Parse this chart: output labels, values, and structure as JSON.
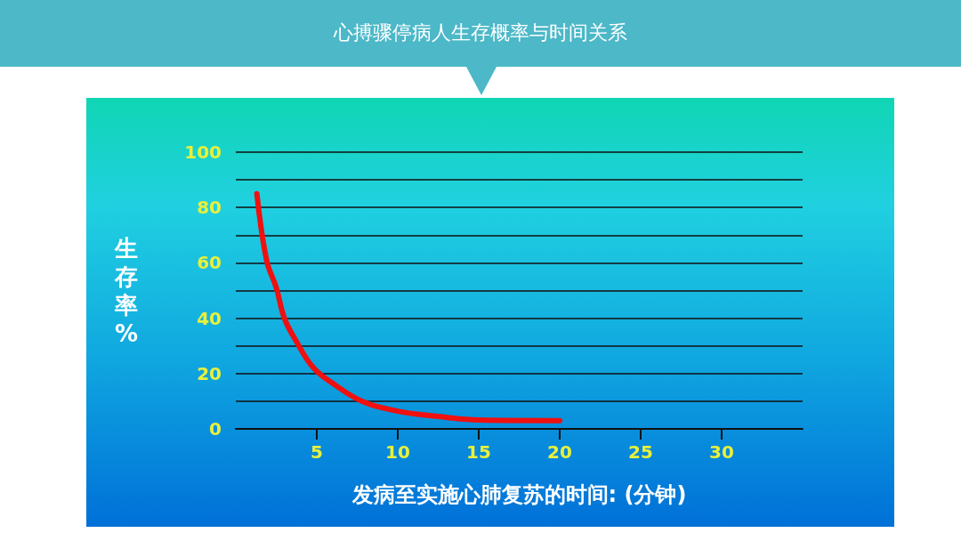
{
  "chart_data": {
    "type": "line",
    "title": "心搏骤停病人生存概率与时间关系",
    "xlabel": "发病至实施心肺复苏的时间: (分钟)",
    "ylabel": "生存率%",
    "x": [
      1.3,
      1.9,
      2.5,
      3,
      3.7,
      4.8,
      6.1,
      7.8,
      10,
      12.5,
      15,
      20
    ],
    "series": [
      {
        "color": "#f01010",
        "values": [
          85,
          61,
          51,
          40,
          32,
          22,
          16,
          10,
          6.4,
          4.5,
          3.2,
          3
        ]
      }
    ],
    "xlim": [
      0,
      35
    ],
    "xticks": [
      5,
      10,
      15,
      20,
      25,
      30
    ],
    "ylim": [
      0,
      100
    ],
    "yticks": [
      0,
      {
        "value": 10,
        "label": null
      },
      20,
      {
        "value": 30,
        "label": null
      },
      40,
      {
        "value": 50,
        "label": null
      },
      60,
      {
        "value": 70,
        "label": null
      },
      80,
      {
        "value": 90,
        "label": null
      },
      100
    ],
    "grid": "y",
    "marker": "none",
    "line_style": "solid"
  }
}
